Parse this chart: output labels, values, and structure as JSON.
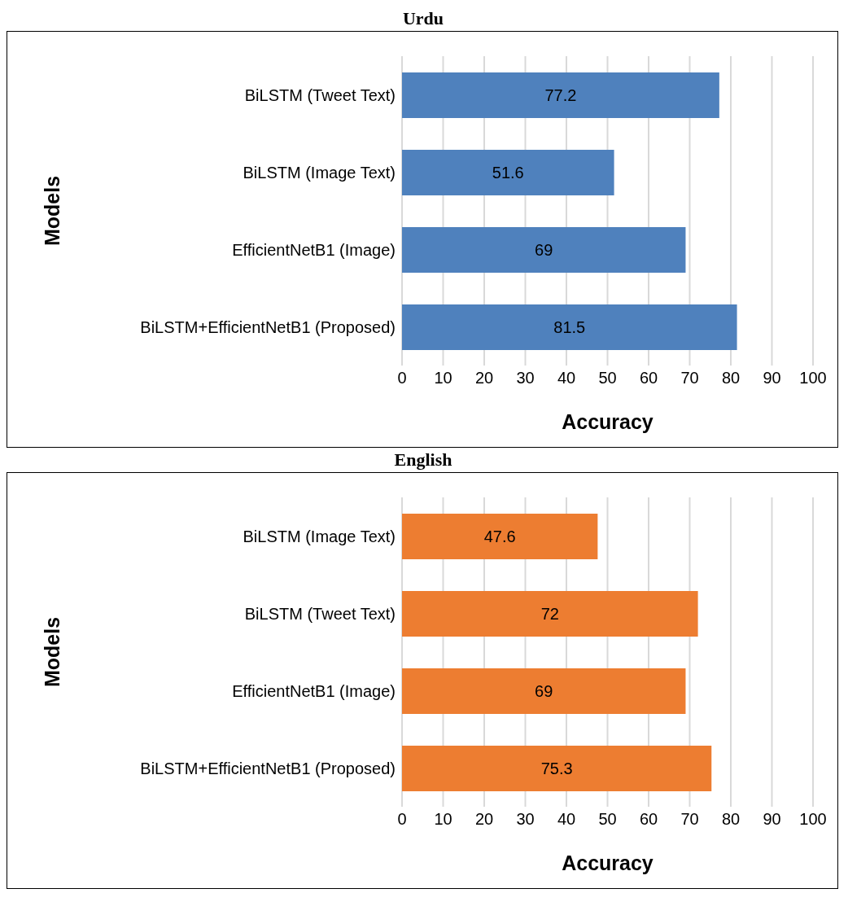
{
  "chart_data": [
    {
      "type": "bar",
      "orientation": "horizontal",
      "title": "Urdu",
      "xlabel": "Accuracy",
      "ylabel": "Models",
      "categories": [
        "BiLSTM (Tweet Text)",
        "BiLSTM (Image Text)",
        "EfficientNetB1 (Image)",
        "BiLSTM+EfficientNetB1 (Proposed)"
      ],
      "series": [
        {
          "color": "#4f81bd",
          "values": [
            77.2,
            51.6,
            69,
            81.5
          ]
        }
      ],
      "xlim": [
        0,
        100
      ],
      "xticks": [
        0,
        10,
        20,
        30,
        40,
        50,
        60,
        70,
        80,
        90,
        100
      ],
      "grid": "x",
      "data_labels": true,
      "legend": false
    },
    {
      "type": "bar",
      "orientation": "horizontal",
      "title": "English",
      "xlabel": "Accuracy",
      "ylabel": "Models",
      "categories": [
        "BiLSTM (Image Text)",
        "BiLSTM (Tweet Text)",
        "EfficientNetB1 (Image)",
        "BiLSTM+EfficientNetB1 (Proposed)"
      ],
      "series": [
        {
          "color": "#ed7d31",
          "values": [
            47.6,
            72,
            69,
            75.3
          ]
        }
      ],
      "xlim": [
        0,
        100
      ],
      "xticks": [
        0,
        10,
        20,
        30,
        40,
        50,
        60,
        70,
        80,
        90,
        100
      ],
      "grid": "x",
      "data_labels": true,
      "legend": false
    }
  ]
}
